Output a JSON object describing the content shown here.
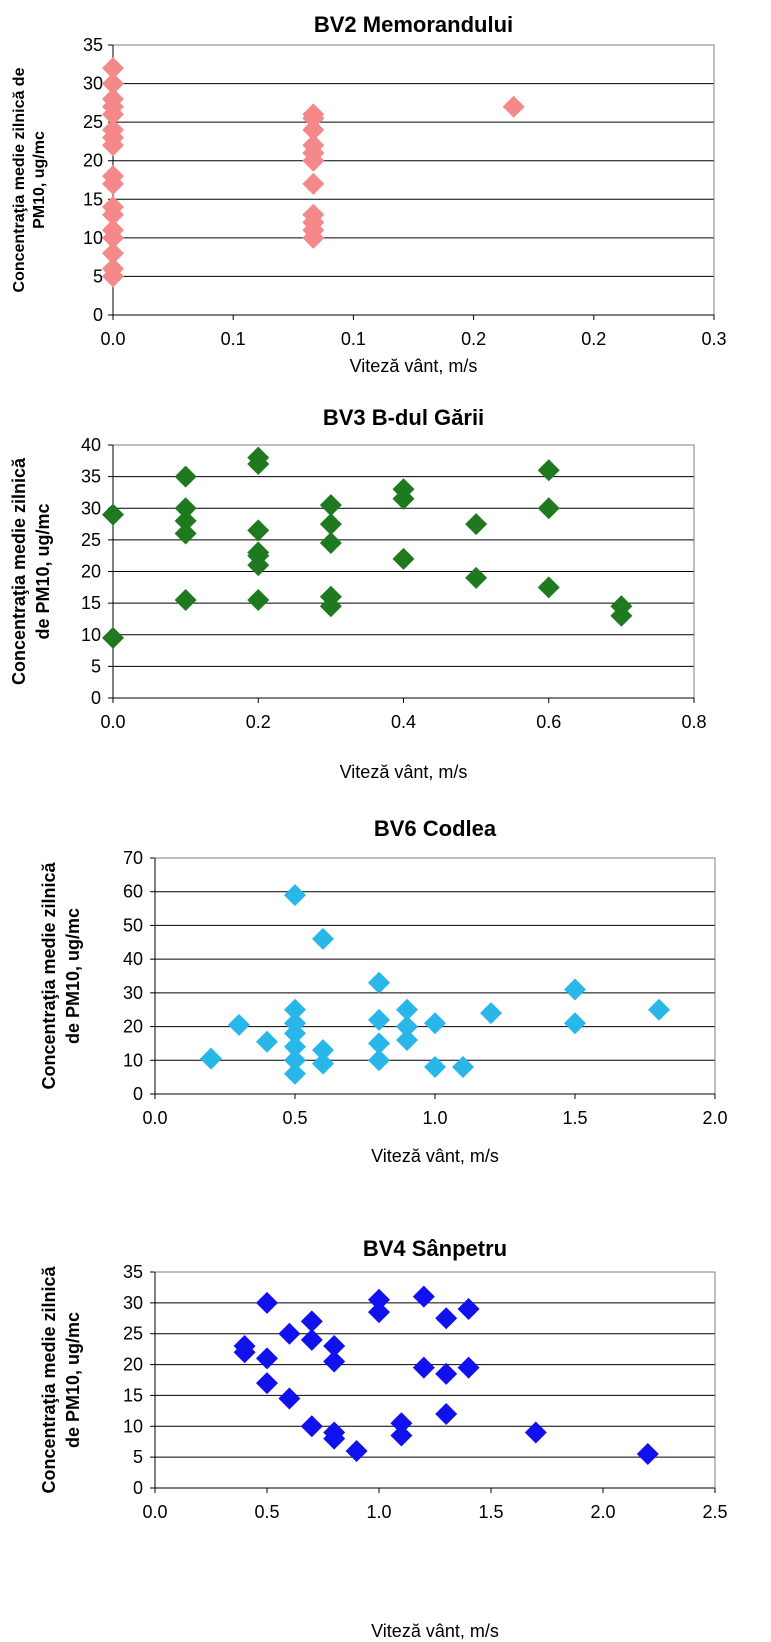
{
  "chart_data": [
    {
      "type": "scatter",
      "title": "BV2 Memorandului",
      "xlabel": "Viteză vânt, m/s",
      "ylabel": "Concentraţia medie zilnică de PM10, ug/mc",
      "xlim": [
        0.0,
        0.3
      ],
      "ylim": [
        0,
        35
      ],
      "xticks": [
        "0.0",
        "0.1",
        "0.1",
        "0.2",
        "0.2",
        "0.3"
      ],
      "yticks": [
        "0",
        "5",
        "10",
        "15",
        "20",
        "25",
        "30",
        "35"
      ],
      "grid": "horizontal",
      "color": "#F4888A",
      "x": [
        0,
        0,
        0,
        0,
        0,
        0,
        0,
        0,
        0,
        0,
        0,
        0,
        0,
        0,
        0,
        0,
        0,
        0.1,
        0.1,
        0.1,
        0.1,
        0.1,
        0.1,
        0.1,
        0.1,
        0.1,
        0.1,
        0.1,
        0.2
      ],
      "y": [
        32,
        30,
        28,
        27,
        24,
        23,
        18,
        17,
        14,
        13,
        10,
        8,
        6,
        5,
        26,
        22,
        11,
        26,
        24,
        22,
        21,
        20,
        17,
        13,
        12,
        11,
        10,
        25.5,
        27
      ]
    },
    {
      "type": "scatter",
      "title": "BV3 B-dul Gării",
      "xlabel": "Viteză vânt, m/s",
      "ylabel": "Concentraţia medie zilnică de PM10, ug/mc",
      "xlim": [
        0.0,
        0.8
      ],
      "ylim": [
        0,
        40
      ],
      "xticks": [
        "0.0",
        "0.2",
        "0.4",
        "0.6",
        "0.8"
      ],
      "yticks": [
        "0",
        "5",
        "10",
        "15",
        "20",
        "25",
        "30",
        "35",
        "40"
      ],
      "grid": "horizontal",
      "color": "#1F7A1F",
      "x": [
        0,
        0,
        0.1,
        0.1,
        0.1,
        0.1,
        0.1,
        0.2,
        0.2,
        0.2,
        0.2,
        0.2,
        0.2,
        0.2,
        0.3,
        0.3,
        0.3,
        0.3,
        0.3,
        0.4,
        0.4,
        0.4,
        0.5,
        0.5,
        0.6,
        0.6,
        0.6,
        0.7,
        0.7
      ],
      "y": [
        29,
        9.5,
        35,
        30,
        28,
        26,
        15.5,
        38,
        37,
        26.5,
        23,
        21,
        15.5,
        22.5,
        30.5,
        27.5,
        24.5,
        16,
        14.5,
        33,
        31.5,
        22,
        27.5,
        19,
        36,
        30,
        17.5,
        14.5,
        13
      ]
    },
    {
      "type": "scatter",
      "title": "BV6 Codlea",
      "xlabel": "Viteză vânt, m/s",
      "ylabel": "Concentraţia medie zilnică de PM10, ug/mc",
      "xlim": [
        0.0,
        2.0
      ],
      "ylim": [
        0,
        70
      ],
      "xticks": [
        "0.0",
        "0.5",
        "1.0",
        "1.5",
        "2.0"
      ],
      "yticks": [
        "0",
        "10",
        "20",
        "30",
        "40",
        "50",
        "60",
        "70"
      ],
      "grid": "horizontal",
      "color": "#29B6E8",
      "x": [
        0.2,
        0.3,
        0.4,
        0.5,
        0.5,
        0.5,
        0.5,
        0.5,
        0.5,
        0.5,
        0.6,
        0.6,
        0.6,
        0.8,
        0.8,
        0.8,
        0.8,
        0.9,
        0.9,
        0.9,
        1.0,
        1.0,
        1.1,
        1.2,
        1.5,
        1.5,
        1.8
      ],
      "y": [
        10.5,
        20.5,
        15.5,
        59,
        25,
        21,
        18,
        14,
        10,
        6,
        46,
        13,
        9,
        33,
        22,
        15,
        10,
        25,
        20,
        16,
        21,
        8,
        8,
        24,
        31,
        21,
        25
      ]
    },
    {
      "type": "scatter",
      "title": "BV4 Sânpetru",
      "xlabel": "Viteză vânt, m/s",
      "ylabel": "Concentraţia medie zilnică de PM10, ug/mc",
      "xlim": [
        0.0,
        2.5
      ],
      "ylim": [
        0,
        35
      ],
      "xticks": [
        "0.0",
        "0.5",
        "1.0",
        "1.5",
        "2.0",
        "2.5"
      ],
      "yticks": [
        "0",
        "5",
        "10",
        "15",
        "20",
        "25",
        "30",
        "35"
      ],
      "grid": "horizontal",
      "color": "#1111EE",
      "x": [
        0.4,
        0.4,
        0.5,
        0.5,
        0.5,
        0.6,
        0.6,
        0.7,
        0.7,
        0.7,
        0.8,
        0.8,
        0.8,
        0.8,
        0.9,
        1.0,
        1.0,
        1.1,
        1.1,
        1.2,
        1.2,
        1.3,
        1.3,
        1.3,
        1.4,
        1.4,
        1.7,
        2.2
      ],
      "y": [
        23,
        22,
        30,
        21,
        17,
        25,
        14.5,
        27,
        24,
        10,
        23,
        20.5,
        9,
        8,
        6,
        30.5,
        28.5,
        10.5,
        8.5,
        31,
        19.5,
        27.5,
        18.5,
        12,
        29,
        19.5,
        9,
        5.5
      ]
    }
  ]
}
